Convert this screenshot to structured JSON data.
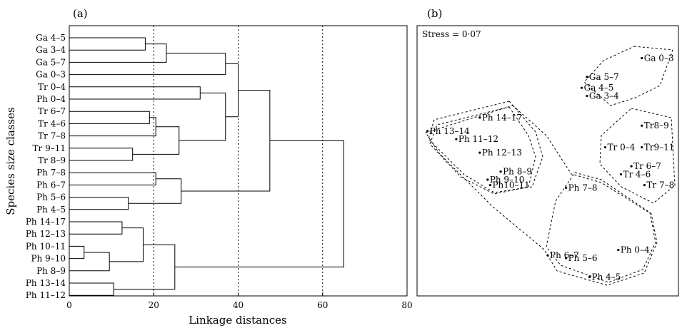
{
  "chart_data": [
    {
      "type": "dendrogram",
      "panel_label": "(a)",
      "xlabel": "Linkage distances",
      "ylabel": "Species size classes",
      "xlim": [
        0,
        80
      ],
      "xticks": [
        0,
        20,
        40,
        60,
        80
      ],
      "grid_x": [
        20,
        40,
        60
      ],
      "leaves": [
        "Ga 4–5",
        "Ga 3–4",
        "Ga 5–7",
        "Ga 0–3",
        "Tr 0–4",
        "Ph 0–4",
        "Tr 6–7",
        "Tr 4–6",
        "Tr 7–8",
        "Tr 9–11",
        "Tr 8–9",
        "Ph 7–8",
        "Ph 6–7",
        "Ph 5–6",
        "Ph 4–5",
        "Ph 14–17",
        "Ph 12–13",
        "Ph 10–11",
        "Ph 9–10",
        "Ph 8–9",
        "Ph 13–14",
        "Ph 11–12"
      ],
      "merges": [
        {
          "id": "m1",
          "a": "L0",
          "b": "L1",
          "height": 18
        },
        {
          "id": "m2",
          "a": "m1",
          "b": "L2",
          "height": 23
        },
        {
          "id": "m3",
          "a": "m2",
          "b": "L3",
          "height": 37
        },
        {
          "id": "m4",
          "a": "L4",
          "b": "L5",
          "height": 31
        },
        {
          "id": "m5",
          "a": "L6",
          "b": "L7",
          "height": 19
        },
        {
          "id": "m6",
          "a": "m5",
          "b": "L8",
          "height": 20.5
        },
        {
          "id": "m7",
          "a": "L9",
          "b": "L10",
          "height": 15
        },
        {
          "id": "m8",
          "a": "m6",
          "b": "m7",
          "height": 26
        },
        {
          "id": "m9",
          "a": "m4",
          "b": "m8",
          "height": 37
        },
        {
          "id": "m10",
          "a": "m3",
          "b": "m9",
          "height": 40
        },
        {
          "id": "m11",
          "a": "L11",
          "b": "L12",
          "height": 20.5
        },
        {
          "id": "m12",
          "a": "L13",
          "b": "L14",
          "height": 14
        },
        {
          "id": "m13",
          "a": "m11",
          "b": "m12",
          "height": 26.5
        },
        {
          "id": "m14",
          "a": "m10",
          "b": "m13",
          "height": 47.5
        },
        {
          "id": "m15",
          "a": "L15",
          "b": "L16",
          "height": 12.5
        },
        {
          "id": "m16",
          "a": "L17",
          "b": "L18",
          "height": 3.5
        },
        {
          "id": "m17",
          "a": "m16",
          "b": "L19",
          "height": 9.5
        },
        {
          "id": "m18",
          "a": "m15",
          "b": "m17",
          "height": 17.5
        },
        {
          "id": "m19",
          "a": "L20",
          "b": "L21",
          "height": 10.5
        },
        {
          "id": "m20",
          "a": "m18",
          "b": "m19",
          "height": 25
        },
        {
          "id": "m21",
          "a": "m14",
          "b": "m20",
          "height": 65
        }
      ]
    },
    {
      "type": "scatter",
      "panel_label": "(b)",
      "annotation": "Stress = 0·07",
      "xlim": [
        0,
        100
      ],
      "ylim": [
        0,
        100
      ],
      "points": [
        {
          "label": "Ga 0–3",
          "x": 86,
          "y": 88
        },
        {
          "label": "Ga 5–7",
          "x": 65,
          "y": 81
        },
        {
          "label": "Ga 4–5",
          "x": 63,
          "y": 77
        },
        {
          "label": "Ga 3–4",
          "x": 65,
          "y": 74
        },
        {
          "label": "Tr8–9",
          "x": 86,
          "y": 63
        },
        {
          "label": "Tr 0–4",
          "x": 72,
          "y": 55
        },
        {
          "label": "Tr9–11",
          "x": 86,
          "y": 55
        },
        {
          "label": "Tr 6–7",
          "x": 82,
          "y": 48
        },
        {
          "label": "Tr 4–6",
          "x": 78,
          "y": 45
        },
        {
          "label": "Tr 7–8",
          "x": 87,
          "y": 41
        },
        {
          "label": "Ph 14–17",
          "x": 24,
          "y": 66
        },
        {
          "label": "Ph 13–14",
          "x": 4,
          "y": 61
        },
        {
          "label": "Ph 11–12",
          "x": 15,
          "y": 58
        },
        {
          "label": "Ph 12–13",
          "x": 24,
          "y": 53
        },
        {
          "label": "Ph 8–9",
          "x": 32,
          "y": 46
        },
        {
          "label": "Ph 9–10",
          "x": 27,
          "y": 43
        },
        {
          "label": "Ph10–11",
          "x": 28,
          "y": 41
        },
        {
          "label": "Ph 7–8",
          "x": 57,
          "y": 40
        },
        {
          "label": "Ph 6–7",
          "x": 50,
          "y": 15
        },
        {
          "label": "Ph 5–6",
          "x": 57,
          "y": 14
        },
        {
          "label": "Ph 0–4",
          "x": 77,
          "y": 17
        },
        {
          "label": "Ph 4–5",
          "x": 66,
          "y": 7
        }
      ]
    }
  ]
}
